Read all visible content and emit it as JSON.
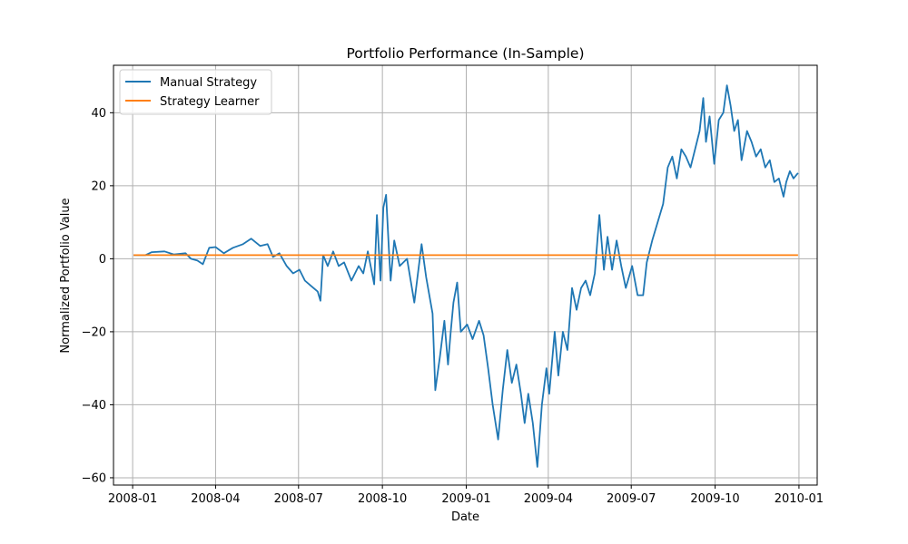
{
  "chart_data": {
    "type": "line",
    "title": "Portfolio Performance (In-Sample)",
    "xlabel": "Date",
    "ylabel": "Normalized Portfolio Value",
    "x_ticks": [
      "2008-01",
      "2008-04",
      "2008-07",
      "2008-10",
      "2009-01",
      "2009-04",
      "2009-07",
      "2009-10",
      "2010-01"
    ],
    "y_ticks": [
      "−60",
      "−40",
      "−20",
      "0",
      "20",
      "40"
    ],
    "ylim": [
      -62,
      53
    ],
    "xlim": [
      "2007-12-11",
      "2010-01-21"
    ],
    "grid": true,
    "legend_position": "top-left",
    "series": [
      {
        "name": "Manual Strategy",
        "color": "#1f77b4",
        "points": [
          [
            "2008-01-02",
            1.0
          ],
          [
            "2008-01-15",
            1.0
          ],
          [
            "2008-01-22",
            1.8
          ],
          [
            "2008-02-05",
            2.0
          ],
          [
            "2008-02-15",
            1.2
          ],
          [
            "2008-02-28",
            1.5
          ],
          [
            "2008-03-05",
            0.0
          ],
          [
            "2008-03-12",
            -0.5
          ],
          [
            "2008-03-18",
            -1.5
          ],
          [
            "2008-03-25",
            3.0
          ],
          [
            "2008-04-01",
            3.2
          ],
          [
            "2008-04-10",
            1.5
          ],
          [
            "2008-04-20",
            3.0
          ],
          [
            "2008-05-01",
            4.0
          ],
          [
            "2008-05-10",
            5.5
          ],
          [
            "2008-05-20",
            3.5
          ],
          [
            "2008-05-28",
            4.0
          ],
          [
            "2008-06-03",
            0.5
          ],
          [
            "2008-06-10",
            1.5
          ],
          [
            "2008-06-18",
            -2.0
          ],
          [
            "2008-06-25",
            -4.0
          ],
          [
            "2008-07-02",
            -3.0
          ],
          [
            "2008-07-08",
            -6.0
          ],
          [
            "2008-07-15",
            -7.5
          ],
          [
            "2008-07-22",
            -9.0
          ],
          [
            "2008-07-25",
            -11.5
          ],
          [
            "2008-07-28",
            1.0
          ],
          [
            "2008-08-02",
            -2.0
          ],
          [
            "2008-08-08",
            2.0
          ],
          [
            "2008-08-14",
            -2.0
          ],
          [
            "2008-08-20",
            -1.0
          ],
          [
            "2008-08-28",
            -6.0
          ],
          [
            "2008-09-05",
            -2.0
          ],
          [
            "2008-09-10",
            -4.0
          ],
          [
            "2008-09-15",
            2.0
          ],
          [
            "2008-09-22",
            -7.0
          ],
          [
            "2008-09-25",
            12.0
          ],
          [
            "2008-09-29",
            -6.0
          ],
          [
            "2008-10-02",
            14.0
          ],
          [
            "2008-10-05",
            17.5
          ],
          [
            "2008-10-08",
            3.0
          ],
          [
            "2008-10-10",
            -6.0
          ],
          [
            "2008-10-14",
            5.0
          ],
          [
            "2008-10-20",
            -2.0
          ],
          [
            "2008-10-28",
            0.0
          ],
          [
            "2008-11-05",
            -12.0
          ],
          [
            "2008-11-10",
            -2.0
          ],
          [
            "2008-11-13",
            4.0
          ],
          [
            "2008-11-18",
            -5.0
          ],
          [
            "2008-11-25",
            -15.0
          ],
          [
            "2008-11-28",
            -36.0
          ],
          [
            "2008-12-03",
            -27.0
          ],
          [
            "2008-12-08",
            -17.0
          ],
          [
            "2008-12-12",
            -29.0
          ],
          [
            "2008-12-15",
            -20.0
          ],
          [
            "2008-12-18",
            -12.0
          ],
          [
            "2008-12-22",
            -6.5
          ],
          [
            "2008-12-26",
            -20.0
          ],
          [
            "2009-01-02",
            -18.0
          ],
          [
            "2009-01-08",
            -22.0
          ],
          [
            "2009-01-15",
            -17.0
          ],
          [
            "2009-01-20",
            -21.0
          ],
          [
            "2009-01-25",
            -30.0
          ],
          [
            "2009-01-30",
            -40.0
          ],
          [
            "2009-02-05",
            -49.5
          ],
          [
            "2009-02-10",
            -36.0
          ],
          [
            "2009-02-15",
            -25.0
          ],
          [
            "2009-02-20",
            -34.0
          ],
          [
            "2009-02-25",
            -29.0
          ],
          [
            "2009-03-02",
            -37.0
          ],
          [
            "2009-03-06",
            -45.0
          ],
          [
            "2009-03-10",
            -37.0
          ],
          [
            "2009-03-15",
            -45.0
          ],
          [
            "2009-03-20",
            -57.0
          ],
          [
            "2009-03-25",
            -40.0
          ],
          [
            "2009-03-30",
            -30.0
          ],
          [
            "2009-04-02",
            -37.0
          ],
          [
            "2009-04-08",
            -20.0
          ],
          [
            "2009-04-12",
            -32.0
          ],
          [
            "2009-04-17",
            -20.0
          ],
          [
            "2009-04-22",
            -25.0
          ],
          [
            "2009-04-27",
            -8.0
          ],
          [
            "2009-05-02",
            -14.0
          ],
          [
            "2009-05-07",
            -8.0
          ],
          [
            "2009-05-12",
            -6.0
          ],
          [
            "2009-05-17",
            -10.0
          ],
          [
            "2009-05-22",
            -4.0
          ],
          [
            "2009-05-27",
            12.0
          ],
          [
            "2009-06-01",
            -3.0
          ],
          [
            "2009-06-05",
            6.0
          ],
          [
            "2009-06-10",
            -3.0
          ],
          [
            "2009-06-15",
            5.0
          ],
          [
            "2009-06-20",
            -2.0
          ],
          [
            "2009-06-25",
            -8.0
          ],
          [
            "2009-07-02",
            -2.0
          ],
          [
            "2009-07-08",
            -10.0
          ],
          [
            "2009-07-14",
            -10.0
          ],
          [
            "2009-07-18",
            -1.0
          ],
          [
            "2009-07-24",
            5.0
          ],
          [
            "2009-07-30",
            10.0
          ],
          [
            "2009-08-05",
            15.0
          ],
          [
            "2009-08-10",
            25.0
          ],
          [
            "2009-08-15",
            28.0
          ],
          [
            "2009-08-20",
            22.0
          ],
          [
            "2009-08-25",
            30.0
          ],
          [
            "2009-08-30",
            28.0
          ],
          [
            "2009-09-04",
            25.0
          ],
          [
            "2009-09-09",
            30.0
          ],
          [
            "2009-09-14",
            35.0
          ],
          [
            "2009-09-18",
            44.0
          ],
          [
            "2009-09-21",
            32.0
          ],
          [
            "2009-09-25",
            39.0
          ],
          [
            "2009-09-30",
            26.0
          ],
          [
            "2009-10-05",
            38.0
          ],
          [
            "2009-10-10",
            40.0
          ],
          [
            "2009-10-14",
            47.5
          ],
          [
            "2009-10-18",
            42.0
          ],
          [
            "2009-10-22",
            35.0
          ],
          [
            "2009-10-26",
            38.0
          ],
          [
            "2009-10-30",
            27.0
          ],
          [
            "2009-11-05",
            35.0
          ],
          [
            "2009-11-10",
            32.0
          ],
          [
            "2009-11-15",
            28.0
          ],
          [
            "2009-11-20",
            30.0
          ],
          [
            "2009-11-25",
            25.0
          ],
          [
            "2009-11-30",
            27.0
          ],
          [
            "2009-12-05",
            21.0
          ],
          [
            "2009-12-10",
            22.0
          ],
          [
            "2009-12-15",
            17.0
          ],
          [
            "2009-12-18",
            21.0
          ],
          [
            "2009-12-22",
            24.0
          ],
          [
            "2009-12-26",
            22.0
          ],
          [
            "2009-12-31",
            23.5
          ]
        ]
      },
      {
        "name": "Strategy Learner",
        "color": "#ff7f0e",
        "points": [
          [
            "2008-01-02",
            1.0
          ],
          [
            "2009-12-31",
            1.0
          ]
        ]
      }
    ]
  }
}
